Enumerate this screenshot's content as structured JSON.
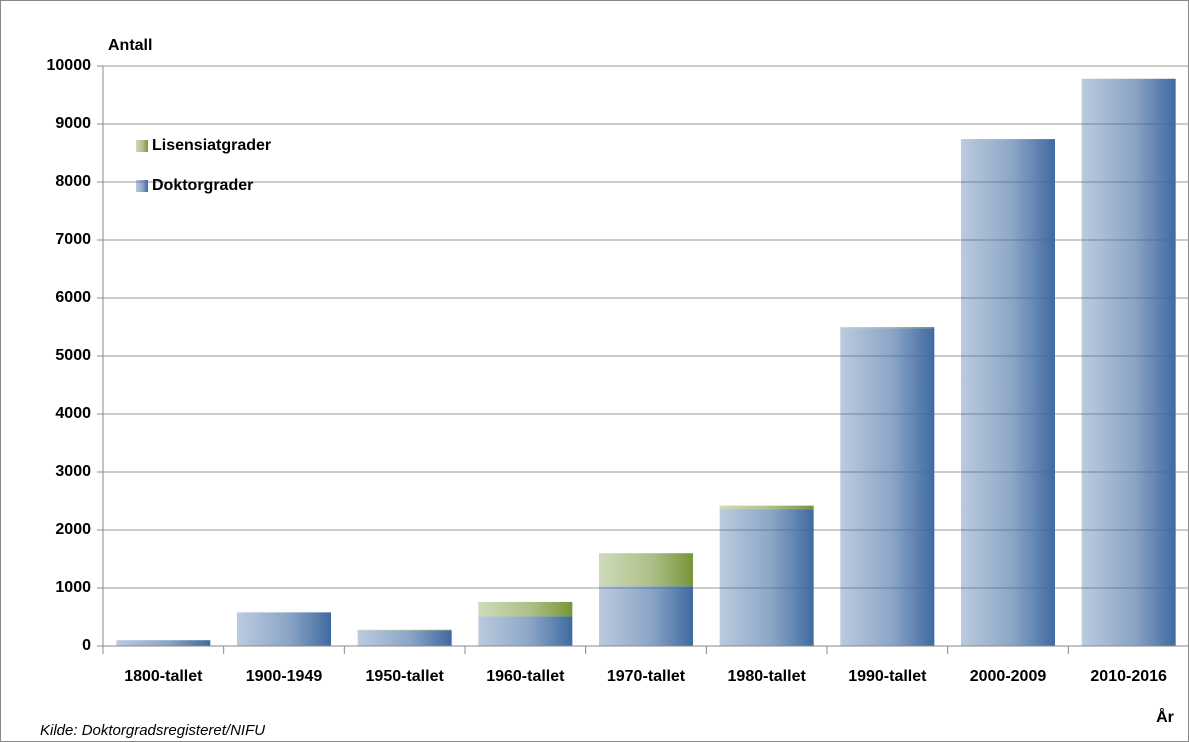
{
  "chart_data": {
    "type": "stacked-bar",
    "y_label": "Antall",
    "x_label": "År",
    "source": "Kilde:  Doktorgradsregisteret/NIFU",
    "categories": [
      "1800-tallet",
      "1900-1949",
      "1950-tallet",
      "1960-tallet",
      "1970-tallet",
      "1980-tallet",
      "1990-tallet",
      "2000-2009",
      "2010-2016"
    ],
    "series": [
      {
        "name": "Doktorgrader",
        "color": "#3f6aa1",
        "values": [
          100,
          580,
          270,
          510,
          1030,
          2360,
          5480,
          8740,
          9780
        ]
      },
      {
        "name": "Lisensiatgrader",
        "color": "#77963a",
        "values": [
          0,
          0,
          10,
          250,
          570,
          60,
          20,
          0,
          0
        ]
      }
    ],
    "ylim": [
      0,
      10000
    ],
    "yticks": [
      0,
      1000,
      2000,
      3000,
      4000,
      5000,
      6000,
      7000,
      8000,
      9000,
      10000
    ],
    "grid": true,
    "legend": "top-left"
  }
}
